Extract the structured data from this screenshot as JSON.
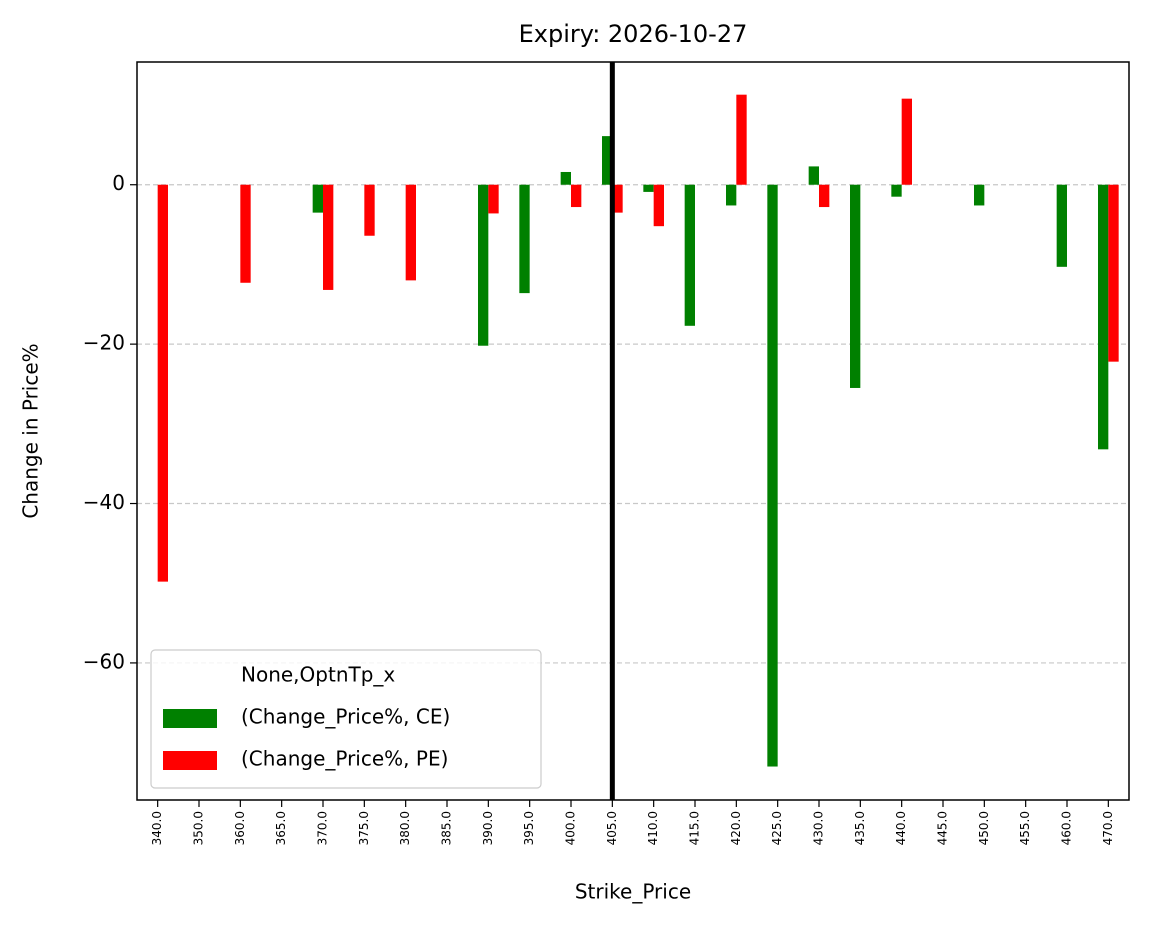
{
  "chart_data": {
    "type": "bar",
    "title": "Expiry: 2026-10-27",
    "x_label": "Strike_Price",
    "y_label": "Change in Price%",
    "categories": [
      "340.0",
      "350.0",
      "360.0",
      "365.0",
      "370.0",
      "375.0",
      "380.0",
      "385.0",
      "390.0",
      "395.0",
      "400.0",
      "405.0",
      "410.0",
      "415.0",
      "420.0",
      "425.0",
      "430.0",
      "435.0",
      "440.0",
      "445.0",
      "450.0",
      "455.0",
      "460.0",
      "470.0"
    ],
    "series": [
      {
        "name": "(Change_Price%, CE)",
        "color": "#008000",
        "values": [
          null,
          null,
          null,
          null,
          -3.5,
          null,
          null,
          null,
          -20.2,
          -13.6,
          1.6,
          6.1,
          -0.9,
          -17.7,
          -2.6,
          -73.0,
          2.3,
          -25.5,
          -1.5,
          null,
          -2.6,
          null,
          -10.3,
          -33.2
        ]
      },
      {
        "name": "(Change_Price%, PE)",
        "color": "#ff0000",
        "values": [
          -49.8,
          null,
          -12.3,
          null,
          -13.2,
          -6.4,
          -12.0,
          null,
          -3.6,
          null,
          -2.8,
          -3.5,
          -5.2,
          null,
          11.3,
          null,
          -2.8,
          null,
          10.8,
          null,
          null,
          null,
          null,
          -22.2
        ]
      }
    ],
    "legend_title": "None,OptnTp_x",
    "legend_loc": "lower left",
    "vline_at": "405.0",
    "ylim": [
      -77.2,
      15.4
    ],
    "yticks": [
      {
        "value": -60,
        "label": "−60"
      },
      {
        "value": -40,
        "label": "−40"
      },
      {
        "value": -20,
        "label": "−20"
      },
      0
    ],
    "grid": true
  }
}
